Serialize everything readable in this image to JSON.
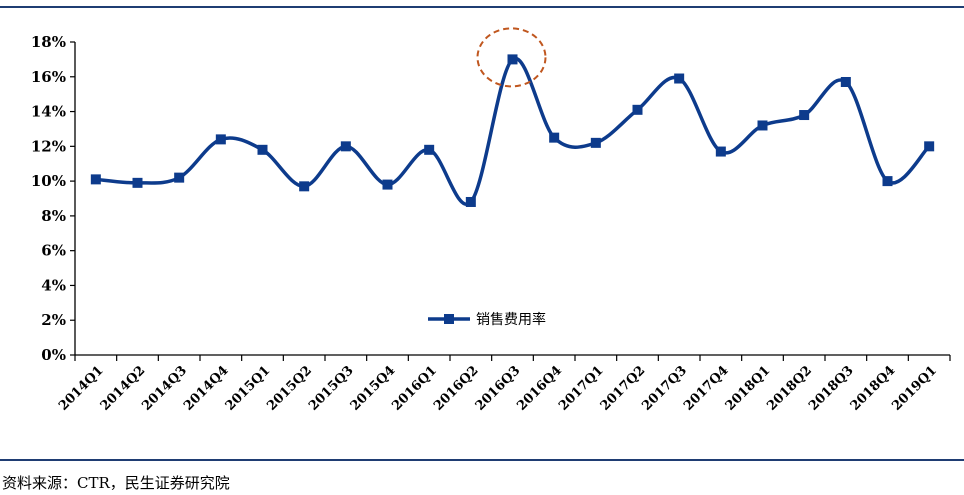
{
  "chart_data": {
    "type": "line",
    "categories": [
      "2014Q1",
      "2014Q2",
      "2014Q3",
      "2014Q4",
      "2015Q1",
      "2015Q2",
      "2015Q3",
      "2015Q4",
      "2016Q1",
      "2016Q2",
      "2016Q3",
      "2016Q4",
      "2017Q1",
      "2017Q2",
      "2017Q3",
      "2017Q4",
      "2018Q1",
      "2018Q2",
      "2018Q3",
      "2018Q4",
      "2019Q1"
    ],
    "series": [
      {
        "name": "销售费用率",
        "values": [
          10.1,
          9.9,
          10.2,
          12.4,
          11.8,
          9.7,
          12.0,
          9.8,
          11.8,
          8.8,
          17.0,
          12.5,
          12.2,
          14.1,
          15.9,
          11.7,
          13.2,
          13.8,
          15.7,
          10.0,
          12.0
        ],
        "color": "#0d3b8c"
      }
    ],
    "yticks": [
      "0%",
      "2%",
      "4%",
      "6%",
      "8%",
      "10%",
      "12%",
      "14%",
      "16%",
      "18%"
    ],
    "ylim": [
      0,
      18
    ],
    "grid": false,
    "legend_position": "bottom-center",
    "highlight": {
      "category": "2016Q3",
      "color": "#c0571f",
      "style": "dashed-circle"
    }
  },
  "source": "资料来源：CTR，民生证券研究院",
  "colors": {
    "rule": "#1f3d73",
    "axis": "#000000"
  }
}
